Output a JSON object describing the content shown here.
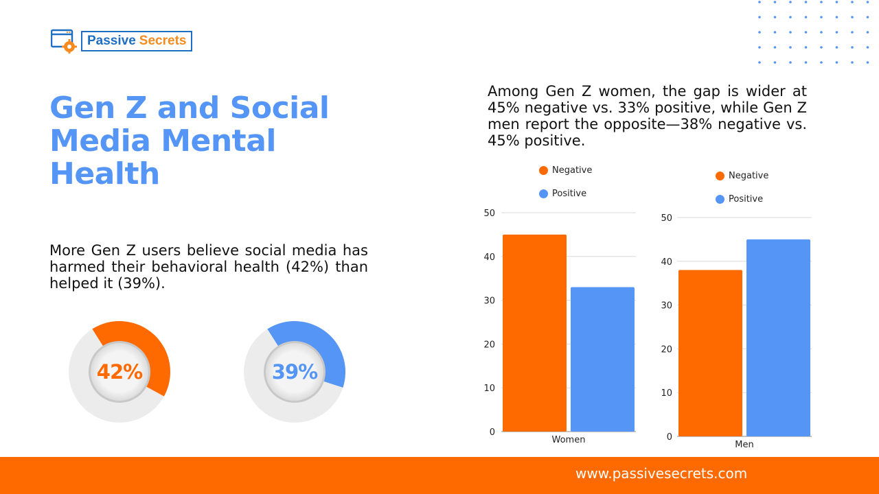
{
  "brand": {
    "word1": "Passive",
    "word2": "Secrets",
    "icon": "browser-gear-icon",
    "colors": {
      "blue": "#1e6ec4",
      "orange": "#f58a1f"
    }
  },
  "title": "Gen Z and Social Media Mental Health",
  "stat_text": "More Gen Z users believe social media has harmed their behavioral health (42%) than helped it (39%).",
  "intro_text": "Among Gen Z women, the gap is wider at 45% negative vs. 33% positive, while Gen Z men report the opposite—38% negative vs. 45% positive.",
  "footer": {
    "url": "www.passivesecrets.com"
  },
  "colors": {
    "negative": "#ff6a00",
    "positive": "#5595f5",
    "accent": "#5595f5",
    "footer": "#ff6a00"
  },
  "chart_data": [
    {
      "type": "pie",
      "label": "42%",
      "value": 42,
      "color": "#ff6a00"
    },
    {
      "type": "pie",
      "label": "39%",
      "value": 39,
      "color": "#5595f5"
    },
    {
      "type": "bar",
      "categories": [
        "Women"
      ],
      "series": [
        {
          "name": "Negative",
          "values": [
            45
          ],
          "color": "#ff6a00"
        },
        {
          "name": "Positive",
          "values": [
            33
          ],
          "color": "#5595f5"
        }
      ],
      "ylim": [
        0,
        50
      ],
      "yticks": [
        0,
        10,
        20,
        30,
        40,
        50
      ],
      "legend": "top",
      "grid": true
    },
    {
      "type": "bar",
      "categories": [
        "Men"
      ],
      "series": [
        {
          "name": "Negative",
          "values": [
            38
          ],
          "color": "#ff6a00"
        },
        {
          "name": "Positive",
          "values": [
            45
          ],
          "color": "#5595f5"
        }
      ],
      "ylim": [
        0,
        50
      ],
      "yticks": [
        0,
        10,
        20,
        30,
        40,
        50
      ],
      "legend": "top",
      "grid": true
    }
  ]
}
